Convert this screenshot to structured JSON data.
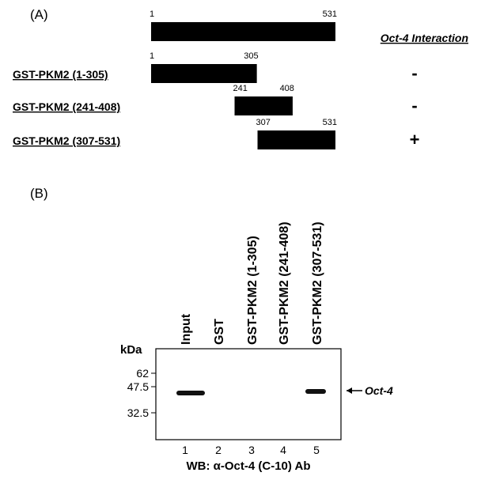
{
  "panel_a": {
    "label": "(A)",
    "interaction_header": "Oct-4 Interaction",
    "full_length": {
      "start": 1,
      "end": 531
    },
    "constructs": [
      {
        "name": "GST-PKM2 (1-305)",
        "start": 1,
        "end": 305,
        "interaction": "-"
      },
      {
        "name": "GST-PKM2 (241-408)",
        "start": 241,
        "end": 408,
        "interaction": "-"
      },
      {
        "name": "GST-PKM2 (307-531)",
        "start": 307,
        "end": 531,
        "interaction": "+"
      }
    ]
  },
  "panel_b": {
    "label": "(B)",
    "unit": "kDa",
    "markers": [
      62,
      47.5,
      32.5
    ],
    "lanes": [
      {
        "number": 1,
        "label": "Input"
      },
      {
        "number": 2,
        "label": "GST"
      },
      {
        "number": 3,
        "label": "GST-PKM2 (1-305)"
      },
      {
        "number": 4,
        "label": "GST-PKM2 (241-408)"
      },
      {
        "number": 5,
        "label": "GST-PKM2 (307-531)"
      }
    ],
    "band_label": "Oct-4",
    "caption": "WB: α-Oct-4 (C-10) Ab"
  }
}
